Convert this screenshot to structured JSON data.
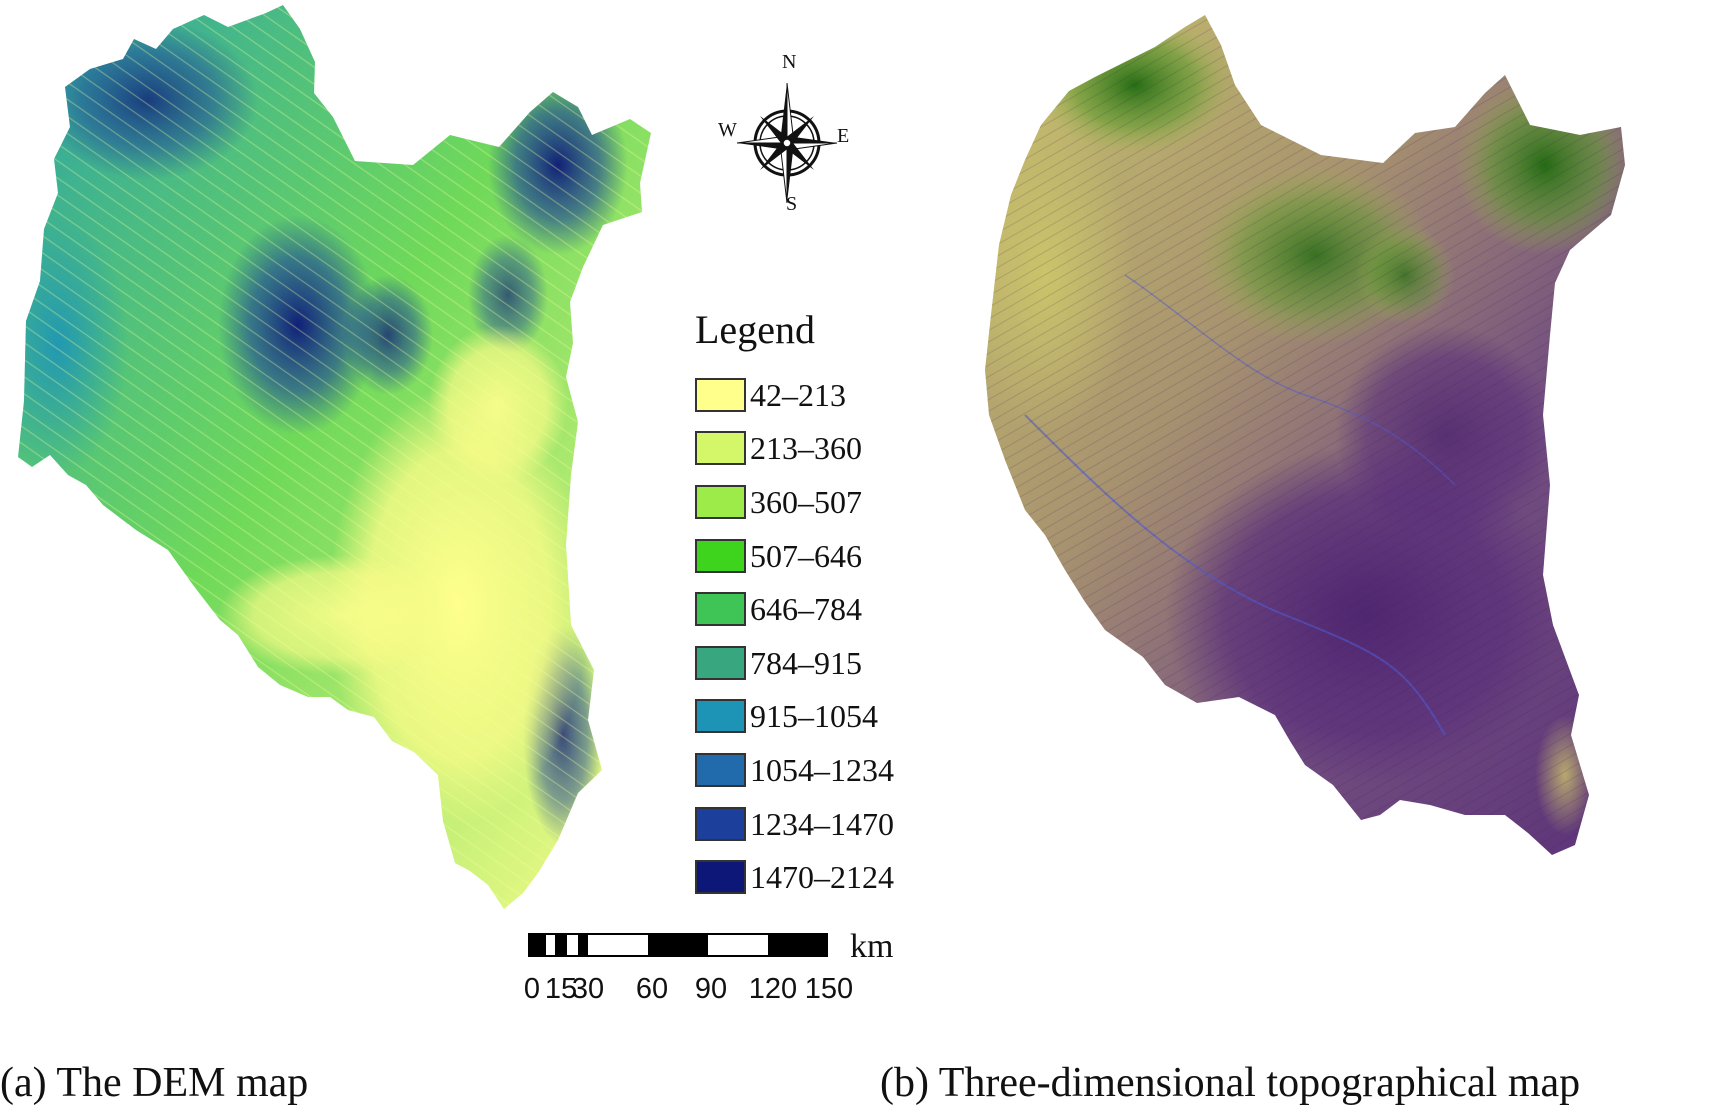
{
  "compass": {
    "n": "N",
    "s": "S",
    "e": "E",
    "w": "W"
  },
  "legend": {
    "title": "Legend",
    "items": [
      {
        "label": "42–213",
        "color": "#ffff8c"
      },
      {
        "label": "213–360",
        "color": "#d4f76a"
      },
      {
        "label": "360–507",
        "color": "#9ceb48"
      },
      {
        "label": "507–646",
        "color": "#3ed31c"
      },
      {
        "label": "646–784",
        "color": "#3fc456"
      },
      {
        "label": "784–915",
        "color": "#38a77f"
      },
      {
        "label": "915–1054",
        "color": "#1d94b6"
      },
      {
        "label": "1054–1234",
        "color": "#216aab"
      },
      {
        "label": "1234–1470",
        "color": "#1c3f9b"
      },
      {
        "label": "1470–2124",
        "color": "#0c1777"
      }
    ]
  },
  "scalebar": {
    "unit": "km",
    "ticks": [
      "0",
      "15",
      "30",
      "60",
      "90",
      "120",
      "150"
    ]
  },
  "captions": {
    "a": "(a) The DEM map",
    "b": "(b) Three-dimensional topographical map"
  },
  "colors": {
    "dem_low": "#ffff8c",
    "dem_high": "#0c1777",
    "topo_low": "#5a2e7a",
    "topo_high": "#1f6a10"
  }
}
